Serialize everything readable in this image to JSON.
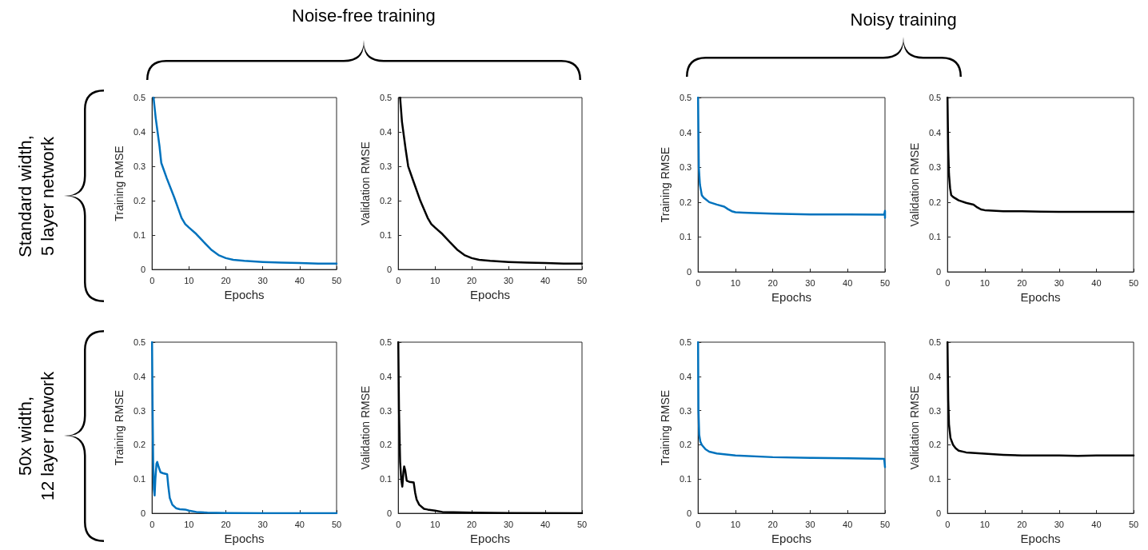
{
  "chart_data": [
    {
      "type": "line",
      "xlabel": "Epochs",
      "ylabel": "Training RMSE",
      "color": "#0072bd",
      "xlim": [
        0,
        50
      ],
      "ylim": [
        0,
        0.5
      ],
      "xticks": [
        0,
        10,
        20,
        30,
        40,
        50
      ],
      "yticks": [
        0,
        0.1,
        0.2,
        0.3,
        0.4,
        0.5
      ],
      "annotations": [
        "Noise-free training",
        "Standard width,\n5 layer network"
      ],
      "x": [
        0.4,
        1,
        2,
        2.5,
        4,
        6,
        8,
        9,
        10,
        12,
        14,
        16,
        18,
        20,
        22,
        25,
        30,
        35,
        40,
        45,
        50
      ],
      "values": [
        0.5,
        0.44,
        0.36,
        0.31,
        0.265,
        0.21,
        0.15,
        0.132,
        0.122,
        0.103,
        0.08,
        0.058,
        0.042,
        0.033,
        0.028,
        0.025,
        0.022,
        0.02,
        0.019,
        0.017,
        0.017
      ]
    },
    {
      "type": "line",
      "xlabel": "Epochs",
      "ylabel": "Validation RMSE",
      "color": "#000000",
      "xlim": [
        0,
        50
      ],
      "ylim": [
        0,
        0.5
      ],
      "xticks": [
        0,
        10,
        20,
        30,
        40,
        50
      ],
      "yticks": [
        0,
        0.1,
        0.2,
        0.3,
        0.4,
        0.5
      ],
      "x": [
        0.5,
        1,
        2,
        2.7,
        4,
        6,
        8,
        9,
        10,
        12,
        14,
        16,
        18,
        20,
        22,
        25,
        30,
        35,
        40,
        45,
        50
      ],
      "values": [
        0.5,
        0.43,
        0.35,
        0.3,
        0.26,
        0.2,
        0.15,
        0.132,
        0.122,
        0.103,
        0.08,
        0.058,
        0.042,
        0.033,
        0.028,
        0.025,
        0.022,
        0.02,
        0.019,
        0.017,
        0.017
      ]
    },
    {
      "type": "line",
      "xlabel": "Epochs",
      "ylabel": "Training RMSE",
      "color": "#0072bd",
      "xlim": [
        0,
        50
      ],
      "ylim": [
        0,
        0.5
      ],
      "xticks": [
        0,
        10,
        20,
        30,
        40,
        50
      ],
      "yticks": [
        0,
        0.1,
        0.2,
        0.3,
        0.4,
        0.5
      ],
      "annotations": [
        "Noisy training"
      ],
      "x": [
        0,
        0.1,
        0.2,
        0.5,
        1,
        1.5,
        3,
        5,
        7,
        8,
        9,
        10,
        12,
        15,
        20,
        30,
        40,
        49.8,
        50,
        50
      ],
      "values": [
        0.5,
        0.4,
        0.3,
        0.25,
        0.22,
        0.213,
        0.2,
        0.193,
        0.187,
        0.18,
        0.174,
        0.171,
        0.17,
        0.169,
        0.167,
        0.165,
        0.165,
        0.164,
        0.175,
        0.155
      ]
    },
    {
      "type": "line",
      "xlabel": "Epochs",
      "ylabel": "Validation RMSE",
      "color": "#000000",
      "xlim": [
        0,
        50
      ],
      "ylim": [
        0,
        0.5
      ],
      "xticks": [
        0,
        10,
        20,
        30,
        40,
        50
      ],
      "yticks": [
        0,
        0.1,
        0.2,
        0.3,
        0.4,
        0.5
      ],
      "x": [
        0,
        0.2,
        0.4,
        0.7,
        1,
        1.5,
        3,
        5,
        7,
        8,
        9,
        10,
        15,
        20,
        25,
        30,
        40,
        50
      ],
      "values": [
        0.5,
        0.35,
        0.28,
        0.24,
        0.22,
        0.215,
        0.205,
        0.198,
        0.193,
        0.185,
        0.179,
        0.177,
        0.174,
        0.174,
        0.173,
        0.172,
        0.172,
        0.172
      ]
    },
    {
      "type": "line",
      "xlabel": "Epochs",
      "ylabel": "Training RMSE",
      "color": "#0072bd",
      "xlim": [
        0,
        50
      ],
      "ylim": [
        0,
        0.5
      ],
      "xticks": [
        0,
        10,
        20,
        30,
        40,
        50
      ],
      "yticks": [
        0,
        0.1,
        0.2,
        0.3,
        0.4,
        0.5
      ],
      "annotations": [
        "50x width,\n12 layer network"
      ],
      "x": [
        0,
        0.15,
        0.3,
        0.5,
        0.7,
        0.9,
        1.2,
        1.4,
        1.8,
        2.3,
        3,
        4.1,
        4.4,
        4.8,
        5.5,
        6.5,
        7.5,
        9,
        10,
        12,
        15,
        20,
        30,
        50
      ],
      "values": [
        0.5,
        0.3,
        0.15,
        0.07,
        0.052,
        0.1,
        0.145,
        0.15,
        0.135,
        0.12,
        0.117,
        0.114,
        0.08,
        0.045,
        0.025,
        0.015,
        0.012,
        0.011,
        0.008,
        0.004,
        0.002,
        0.001,
        0,
        0
      ]
    },
    {
      "type": "line",
      "xlabel": "Epochs",
      "ylabel": "Validation RMSE",
      "color": "#000000",
      "xlim": [
        0,
        50
      ],
      "ylim": [
        0,
        0.5
      ],
      "xticks": [
        0,
        10,
        20,
        30,
        40,
        50
      ],
      "yticks": [
        0,
        0.1,
        0.2,
        0.3,
        0.4,
        0.5
      ],
      "x": [
        0,
        0.2,
        0.5,
        0.8,
        1.1,
        1.4,
        1.6,
        1.9,
        2.3,
        3,
        4.2,
        4.6,
        5,
        5.7,
        7,
        8,
        10,
        12,
        15,
        20,
        30,
        50
      ],
      "values": [
        0.5,
        0.3,
        0.15,
        0.1,
        0.078,
        0.12,
        0.137,
        0.125,
        0.095,
        0.092,
        0.09,
        0.06,
        0.04,
        0.025,
        0.013,
        0.011,
        0.008,
        0.004,
        0.003,
        0.002,
        0.001,
        0
      ]
    },
    {
      "type": "line",
      "xlabel": "Epochs",
      "ylabel": "Training RMSE",
      "color": "#0072bd",
      "xlim": [
        0,
        50
      ],
      "ylim": [
        0,
        0.5
      ],
      "xticks": [
        0,
        10,
        20,
        30,
        40,
        50
      ],
      "yticks": [
        0,
        0.1,
        0.2,
        0.3,
        0.4,
        0.5
      ],
      "x": [
        0,
        0.1,
        0.3,
        0.6,
        1,
        2,
        3,
        5,
        10,
        20,
        30,
        40,
        49.8,
        50
      ],
      "values": [
        0.5,
        0.3,
        0.23,
        0.21,
        0.2,
        0.187,
        0.18,
        0.175,
        0.169,
        0.164,
        0.162,
        0.161,
        0.159,
        0.135
      ]
    },
    {
      "type": "line",
      "xlabel": "Epochs",
      "ylabel": "Validation RMSE",
      "color": "#000000",
      "xlim": [
        0,
        50
      ],
      "ylim": [
        0,
        0.5
      ],
      "xticks": [
        0,
        10,
        20,
        30,
        40,
        50
      ],
      "yticks": [
        0,
        0.1,
        0.2,
        0.3,
        0.4,
        0.5
      ],
      "x": [
        0,
        0.2,
        0.4,
        0.8,
        1.5,
        2.2,
        3,
        5,
        10,
        15,
        20,
        30,
        35,
        40,
        50
      ],
      "values": [
        0.5,
        0.33,
        0.26,
        0.22,
        0.2,
        0.19,
        0.183,
        0.178,
        0.174,
        0.171,
        0.169,
        0.169,
        0.168,
        0.169,
        0.169
      ]
    }
  ]
}
